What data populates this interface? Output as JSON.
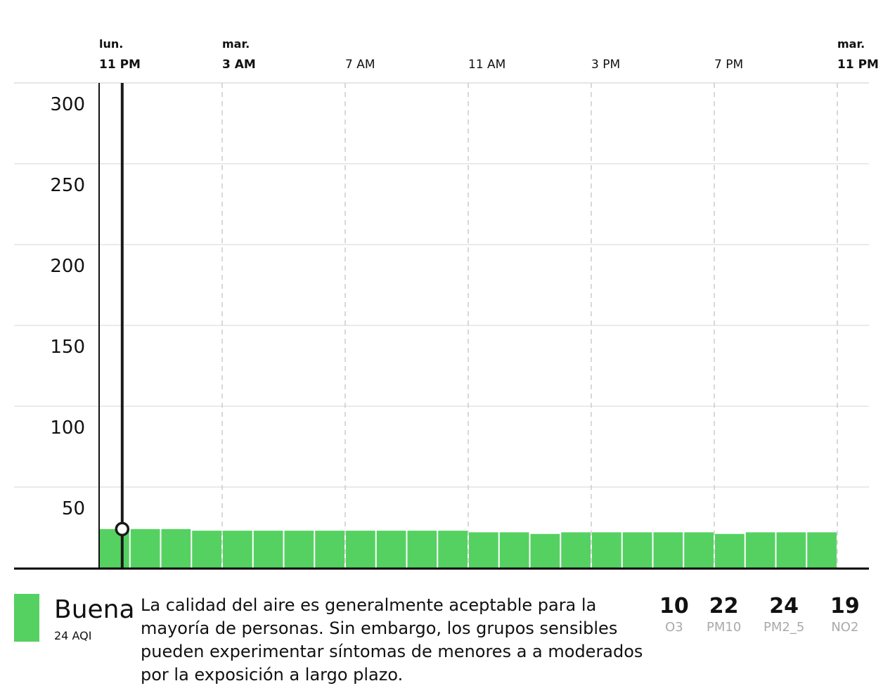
{
  "chart_data": {
    "type": "bar",
    "ylim": [
      0,
      300
    ],
    "yticks": [
      "50",
      "100",
      "150",
      "200",
      "250",
      "300"
    ],
    "ytick_values": [
      50,
      100,
      150,
      200,
      250,
      300
    ],
    "xticks": [
      {
        "day": "lun.",
        "time": "11 PM",
        "hour_index": 0,
        "bold": true
      },
      {
        "day": "mar.",
        "time": "3 AM",
        "hour_index": 4,
        "bold": true
      },
      {
        "day": "",
        "time": "7 AM",
        "hour_index": 8,
        "bold": false
      },
      {
        "day": "",
        "time": "11 AM",
        "hour_index": 12,
        "bold": false
      },
      {
        "day": "",
        "time": "3 PM",
        "hour_index": 16,
        "bold": false
      },
      {
        "day": "",
        "time": "7 PM",
        "hour_index": 20,
        "bold": false
      },
      {
        "day": "mar.",
        "time": "11 PM",
        "hour_index": 24,
        "bold": true
      }
    ],
    "values": [
      24,
      24,
      24,
      23,
      23,
      23,
      23,
      23,
      23,
      23,
      23,
      23,
      22,
      22,
      21,
      22,
      22,
      22,
      22,
      22,
      21,
      22,
      22,
      22
    ],
    "bar_color": "#55d162",
    "selected_hour_offset": 0.75,
    "selected_value": 24
  },
  "legend": {
    "category": "Buena",
    "aqi": "24 AQI",
    "color": "#55d162",
    "description": "La calidad del aire es generalmente aceptable para la mayoría de personas. Sin embargo, los grupos sensibles pueden experimentar síntomas de menores a a moderados por la exposición a largo plazo."
  },
  "pollutants": [
    {
      "value": "10",
      "name": "O3"
    },
    {
      "value": "22",
      "name": "PM10"
    },
    {
      "value": "24",
      "name": "PM2_5"
    },
    {
      "value": "19",
      "name": "NO2"
    }
  ]
}
